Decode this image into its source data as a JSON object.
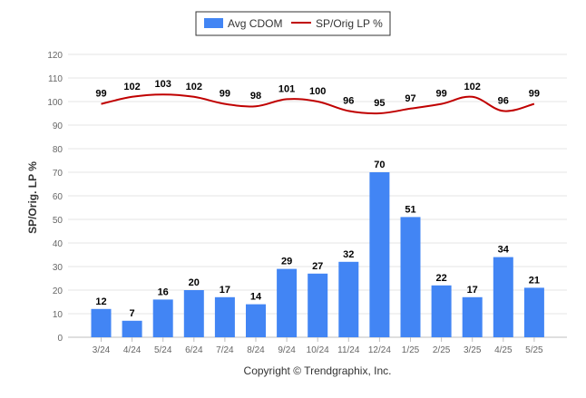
{
  "chart_data": {
    "type": "bar",
    "categories": [
      "3/24",
      "4/24",
      "5/24",
      "6/24",
      "7/24",
      "8/24",
      "9/24",
      "10/24",
      "11/24",
      "12/24",
      "1/25",
      "2/25",
      "3/25",
      "4/25",
      "5/25"
    ],
    "series": [
      {
        "name": "Avg CDOM",
        "type": "bar",
        "color": "#4285f4",
        "values": [
          12,
          7,
          16,
          20,
          17,
          14,
          29,
          27,
          32,
          70,
          51,
          22,
          17,
          34,
          21
        ]
      },
      {
        "name": "SP/Orig LP %",
        "type": "line",
        "color": "#c00000",
        "values": [
          99,
          102,
          103,
          102,
          99,
          98,
          101,
          100,
          96,
          95,
          97,
          99,
          102,
          96,
          99
        ]
      }
    ],
    "ylabel": "SP/Orig. LP %",
    "ylim": [
      0,
      120
    ],
    "yticks": [
      0,
      10,
      20,
      30,
      40,
      50,
      60,
      70,
      80,
      90,
      100,
      110,
      120
    ],
    "grid": true,
    "legend_position": "top-center",
    "footer": "Copyright © Trendgraphix, Inc."
  }
}
